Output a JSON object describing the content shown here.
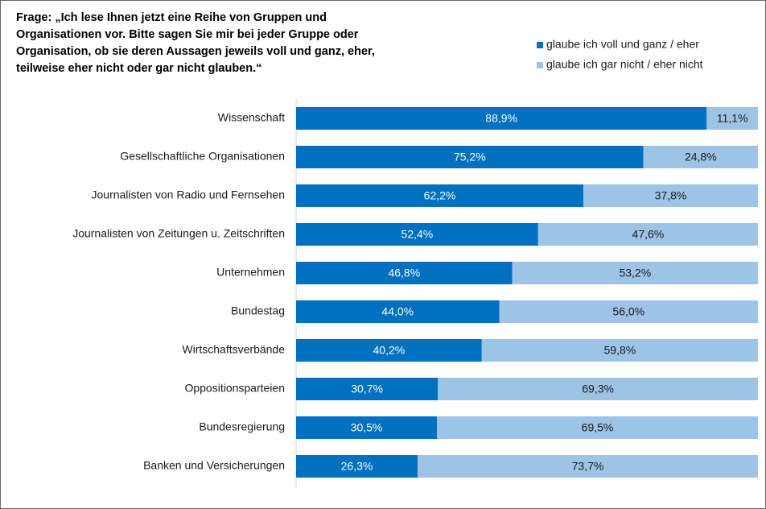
{
  "chart_data": {
    "type": "stacked-barh",
    "title": [
      "Frage: „Ich lese Ihnen jetzt eine Reihe von Gruppen und",
      "Organisationen vor. Bitte sagen Sie mir bei jeder Gruppe oder",
      "Organisation, ob sie deren Aussagen jeweils voll und ganz, eher,",
      "teilweise eher nicht oder gar nicht glauben.“"
    ],
    "categories": [
      "Wissenschaft",
      "Gesellschaftliche Organisationen",
      "Journalisten von Radio und Fernsehen",
      "Journalisten von Zeitungen u. Zeitschriften",
      "Unternehmen",
      "Bundestag",
      "Wirtschaftsverbände",
      "Oppositionsparteien",
      "Bundesregierung",
      "Banken und Versicherungen"
    ],
    "series": [
      {
        "name": "glaube ich voll und ganz / eher",
        "color": "#0070c0",
        "values": [
          88.9,
          75.2,
          62.2,
          52.4,
          46.8,
          44.0,
          40.2,
          30.7,
          30.5,
          26.3
        ],
        "value_labels": [
          "88,9%",
          "75,2%",
          "62,2%",
          "52,4%",
          "46,8%",
          "44,0%",
          "40,2%",
          "30,7%",
          "30,5%",
          "26,3%"
        ]
      },
      {
        "name": "glaube ich gar nicht / eher nicht",
        "color": "#9dc3e6",
        "values": [
          11.1,
          24.8,
          37.8,
          47.6,
          53.2,
          56.0,
          59.8,
          69.3,
          69.5,
          73.7
        ],
        "value_labels": [
          "11,1%",
          "24,8%",
          "37,8%",
          "47,6%",
          "53,2%",
          "56,0%",
          "59,8%",
          "69,3%",
          "69,5%",
          "73,7%"
        ]
      }
    ],
    "xlim": [
      0,
      100
    ],
    "legend": "top-right"
  }
}
